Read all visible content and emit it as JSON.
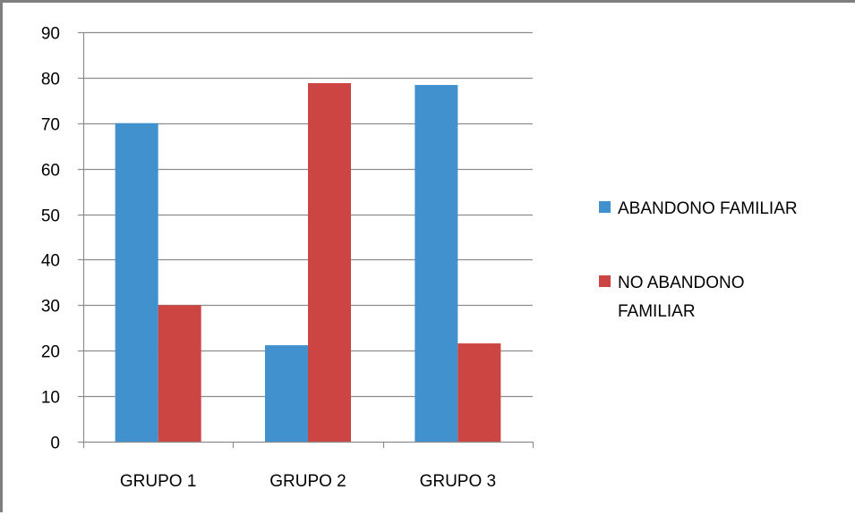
{
  "chart_data": {
    "type": "bar",
    "title": "",
    "xlabel": "",
    "ylabel": "",
    "categories": [
      "GRUPO 1",
      "GRUPO 2",
      "GRUPO 3"
    ],
    "series": [
      {
        "name": "ABANDONO FAMILIAR",
        "color": "#4191cf",
        "values": [
          70,
          21.2,
          78.4
        ]
      },
      {
        "name": "NO ABANDONO FAMILIAR",
        "color": "#cd4543",
        "values": [
          30,
          78.8,
          21.6
        ]
      }
    ],
    "ylim": [
      0,
      90
    ],
    "yticks": [
      0,
      10,
      20,
      30,
      40,
      50,
      60,
      70,
      80,
      90
    ],
    "grid": true,
    "legend_position": "right",
    "legend_labels": [
      {
        "lines": [
          "ABANDONO FAMILIAR"
        ]
      },
      {
        "lines": [
          "NO ABANDONO",
          "FAMILIAR"
        ]
      }
    ]
  }
}
